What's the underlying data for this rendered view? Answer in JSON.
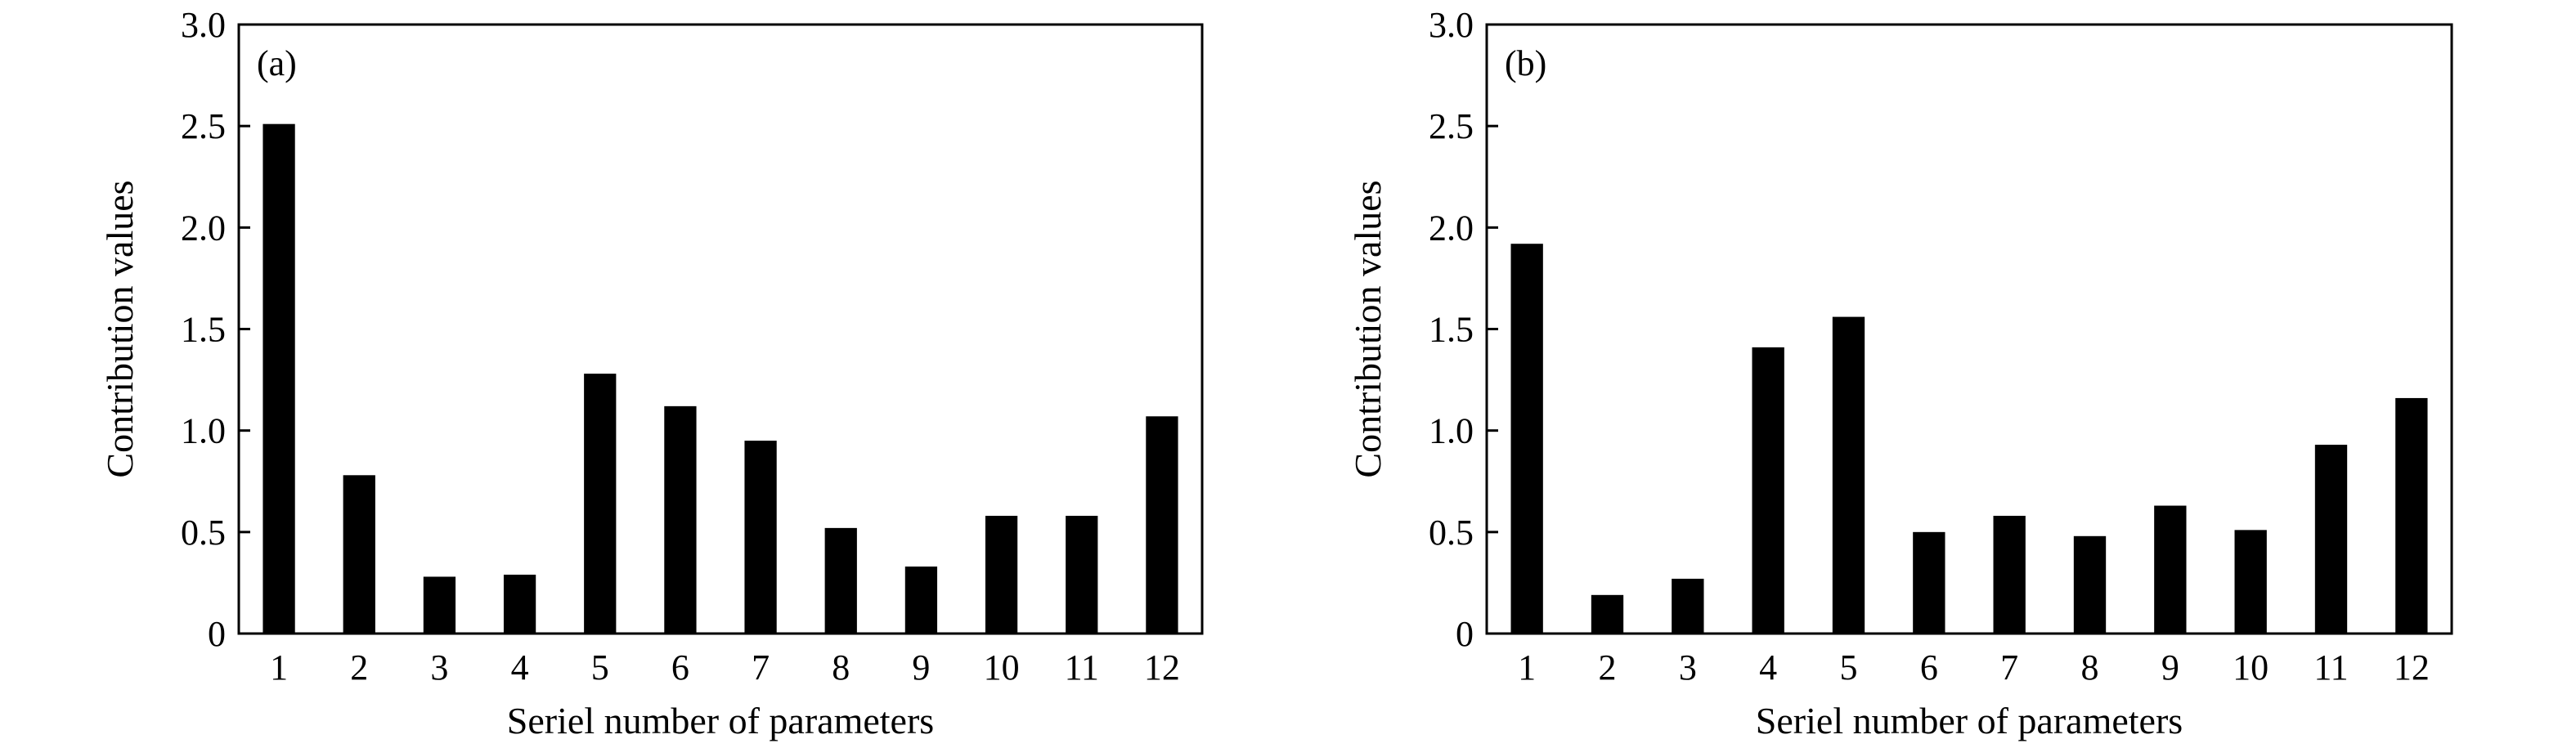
{
  "chart_data": [
    {
      "type": "bar",
      "panel_label": "(a)",
      "title": "",
      "xlabel": "Seriel number of parameters",
      "ylabel": "Contribution values",
      "categories": [
        "1",
        "2",
        "3",
        "4",
        "5",
        "6",
        "7",
        "8",
        "9",
        "10",
        "11",
        "12"
      ],
      "values": [
        2.51,
        0.78,
        0.28,
        0.29,
        1.28,
        1.12,
        0.95,
        0.52,
        0.33,
        0.58,
        0.58,
        1.07
      ],
      "ylim": [
        0,
        3.0
      ],
      "yticks": [
        0,
        0.5,
        1.0,
        1.5,
        2.0,
        2.5,
        3.0
      ],
      "ytick_labels": [
        "0",
        "0.5",
        "1.0",
        "1.5",
        "2.0",
        "2.5",
        "3.0"
      ],
      "grid": false,
      "bar_color": "#000000"
    },
    {
      "type": "bar",
      "panel_label": "(b)",
      "title": "",
      "xlabel": "Seriel number of parameters",
      "ylabel": "Contribution values",
      "categories": [
        "1",
        "2",
        "3",
        "4",
        "5",
        "6",
        "7",
        "8",
        "9",
        "10",
        "11",
        "12"
      ],
      "values": [
        1.92,
        0.19,
        0.27,
        1.41,
        1.56,
        0.5,
        0.58,
        0.48,
        0.63,
        0.51,
        0.93,
        1.16
      ],
      "ylim": [
        0,
        3.0
      ],
      "yticks": [
        0,
        0.5,
        1.0,
        1.5,
        2.0,
        2.5,
        3.0
      ],
      "ytick_labels": [
        "0",
        "0.5",
        "1.0",
        "1.5",
        "2.0",
        "2.5",
        "3.0"
      ],
      "grid": false,
      "bar_color": "#000000"
    }
  ]
}
